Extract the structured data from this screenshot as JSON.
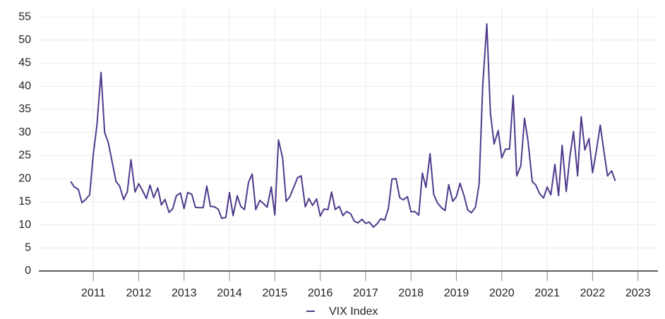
{
  "chart_data": {
    "type": "line",
    "x": [
      2011,
      2011.08,
      2011.17,
      2011.25,
      2011.33,
      2011.42,
      2011.5,
      2011.58,
      2011.67,
      2011.75,
      2011.83,
      2011.92,
      2012,
      2012.08,
      2012.17,
      2012.25,
      2012.33,
      2012.42,
      2012.5,
      2012.58,
      2012.67,
      2012.75,
      2012.83,
      2012.92,
      2013,
      2013.08,
      2013.17,
      2013.25,
      2013.33,
      2013.42,
      2013.5,
      2013.58,
      2013.67,
      2013.75,
      2013.83,
      2013.92,
      2014,
      2014.08,
      2014.17,
      2014.25,
      2014.33,
      2014.42,
      2014.5,
      2014.58,
      2014.67,
      2014.75,
      2014.83,
      2014.92,
      2015,
      2015.08,
      2015.17,
      2015.25,
      2015.33,
      2015.42,
      2015.5,
      2015.58,
      2015.67,
      2015.75,
      2015.83,
      2015.92,
      2016,
      2016.08,
      2016.17,
      2016.25,
      2016.33,
      2016.42,
      2016.5,
      2016.58,
      2016.67,
      2016.75,
      2016.83,
      2016.92,
      2017,
      2017.08,
      2017.17,
      2017.25,
      2017.33,
      2017.42,
      2017.5,
      2017.58,
      2017.67,
      2017.75,
      2017.83,
      2017.92,
      2018,
      2018.08,
      2018.17,
      2018.25,
      2018.33,
      2018.42,
      2018.5,
      2018.58,
      2018.67,
      2018.75,
      2018.83,
      2018.92,
      2019,
      2019.08,
      2019.17,
      2019.25,
      2019.33,
      2019.42,
      2019.5,
      2019.58,
      2019.67,
      2019.75,
      2019.83,
      2019.92,
      2020,
      2020.08,
      2020.17,
      2020.25,
      2020.33,
      2020.42,
      2020.5,
      2020.58,
      2020.67,
      2020.75,
      2020.83,
      2020.92,
      2021,
      2021.08,
      2021.17,
      2021.25,
      2021.33,
      2021.42,
      2021.5,
      2021.58,
      2021.67,
      2021.75,
      2021.83,
      2021.92,
      2022,
      2022.08,
      2022.17,
      2022.25,
      2022.33,
      2022.42,
      2022.5,
      2022.58,
      2022.67,
      2022.75,
      2022.83,
      2022.92,
      2023
    ],
    "series": [
      {
        "name": "VIX Index",
        "color": "#4f3a8c",
        "values": [
          19.4,
          18.2,
          17.7,
          14.8,
          15.5,
          16.5,
          25.3,
          31.6,
          43.0,
          30.0,
          27.8,
          23.4,
          19.4,
          18.4,
          15.5,
          17.2,
          24.1,
          17.1,
          18.9,
          17.5,
          15.7,
          18.6,
          15.9,
          18.0,
          14.3,
          15.5,
          12.7,
          13.5,
          16.3,
          16.9,
          13.5,
          17.0,
          16.6,
          13.8,
          13.7,
          13.7,
          18.4,
          14.0,
          13.9,
          13.4,
          11.4,
          11.6,
          17.0,
          12.0,
          16.3,
          14.0,
          13.3,
          19.2,
          21.0,
          13.3,
          15.3,
          14.6,
          13.8,
          18.2,
          12.1,
          28.4,
          24.5,
          15.1,
          16.1,
          18.2,
          20.2,
          20.6,
          13.9,
          15.7,
          14.2,
          15.6,
          11.9,
          13.4,
          13.3,
          17.1,
          13.3,
          14.0,
          12.0,
          12.9,
          12.4,
          10.8,
          10.4,
          11.2,
          10.3,
          10.6,
          9.5,
          10.2,
          11.3,
          11.0,
          13.5,
          19.9,
          20.0,
          15.9,
          15.4,
          16.1,
          12.8,
          12.9,
          12.1,
          21.2,
          18.1,
          25.4,
          16.6,
          14.8,
          13.7,
          13.1,
          18.7,
          15.1,
          16.1,
          19.0,
          16.2,
          13.2,
          12.6,
          13.8,
          18.8,
          40.1,
          53.5,
          34.2,
          27.5,
          30.4,
          24.5,
          26.4,
          26.4,
          38.0,
          20.6,
          22.8,
          33.1,
          28.0,
          19.4,
          18.6,
          16.8,
          15.8,
          18.2,
          16.5,
          23.1,
          16.3,
          27.2,
          17.2,
          24.8,
          30.2,
          20.6,
          33.4,
          26.2,
          28.7,
          21.3,
          25.9,
          31.6,
          25.9,
          20.6,
          21.7,
          19.5
        ]
      }
    ],
    "xlim": [
      2010.3,
      2023.94
    ],
    "xticks": [
      {
        "value": 2011.5,
        "label": "2011"
      },
      {
        "value": 2012.5,
        "label": "2012"
      },
      {
        "value": 2013.5,
        "label": "2013"
      },
      {
        "value": 2014.5,
        "label": "2014"
      },
      {
        "value": 2015.5,
        "label": "2015"
      },
      {
        "value": 2016.5,
        "label": "2016"
      },
      {
        "value": 2017.5,
        "label": "2017"
      },
      {
        "value": 2018.5,
        "label": "2018"
      },
      {
        "value": 2019.5,
        "label": "2019"
      },
      {
        "value": 2020.5,
        "label": "2020"
      },
      {
        "value": 2021.5,
        "label": "2021"
      },
      {
        "value": 2022.5,
        "label": "2022"
      },
      {
        "value": 2023.5,
        "label": "2023"
      }
    ],
    "ylim": [
      0,
      57
    ],
    "yticks": [
      0,
      5,
      10,
      15,
      20,
      25,
      30,
      35,
      40,
      45,
      50,
      55
    ],
    "grid": true,
    "legend": "bottom"
  }
}
